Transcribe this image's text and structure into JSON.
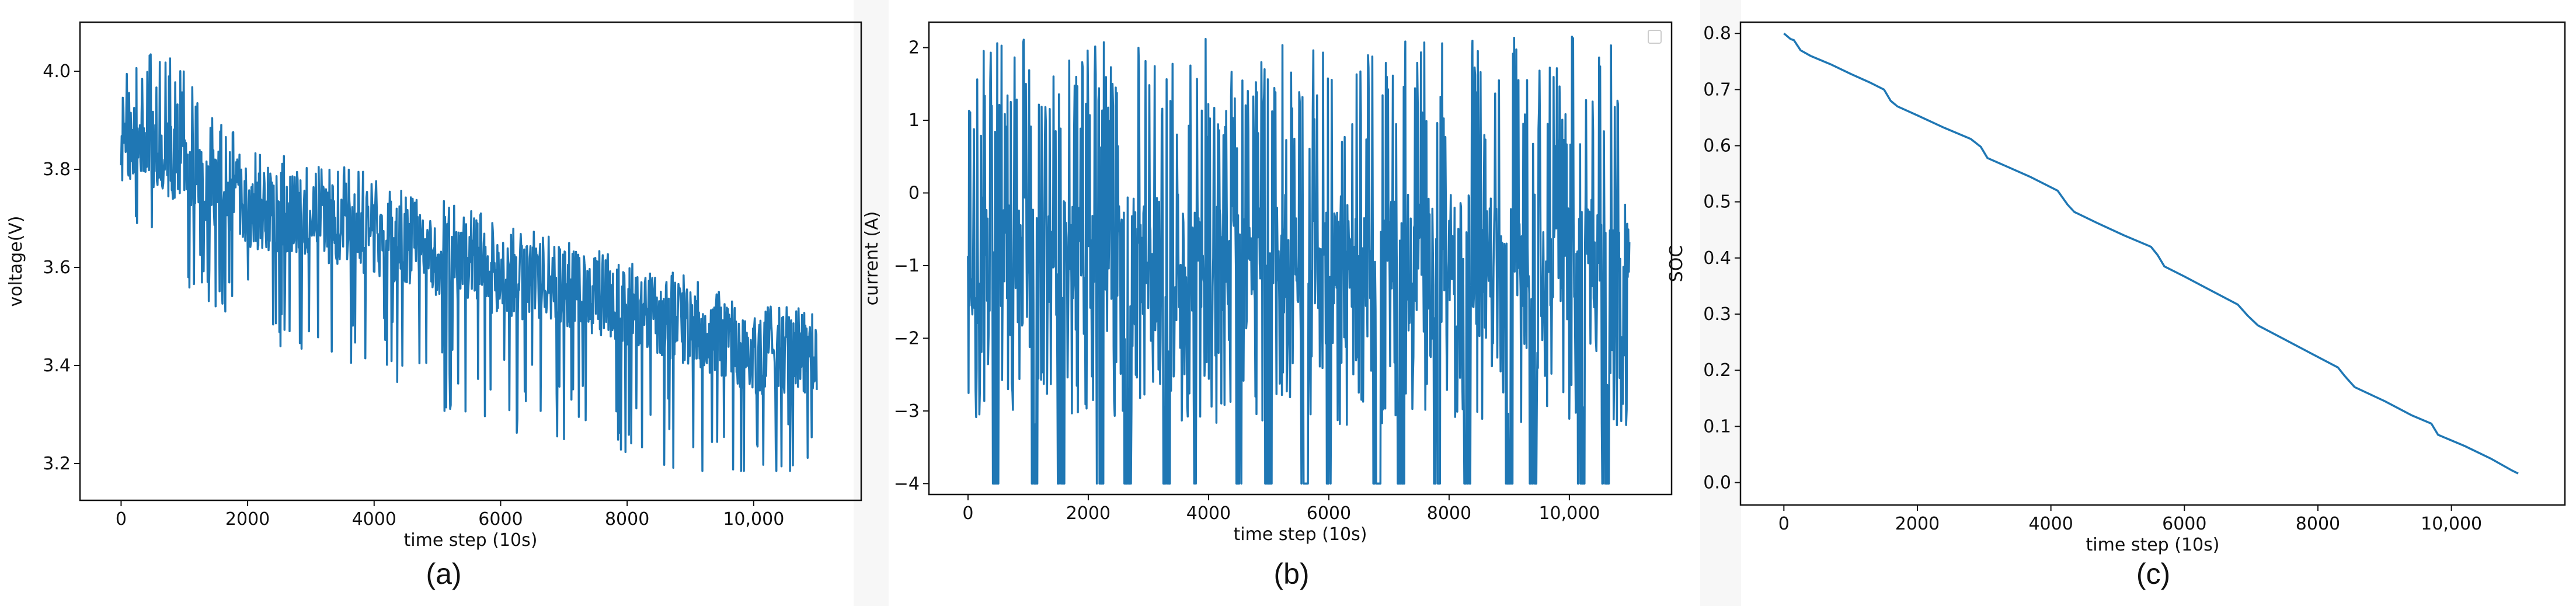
{
  "figure": {
    "panel_labels": [
      "(a)",
      "(b)",
      "(c)"
    ]
  },
  "chart_data": [
    {
      "type": "line",
      "xlabel": "time step (10s)",
      "ylabel": "voltage(V)",
      "xlim": [
        -650,
        11700
      ],
      "ylim": [
        3.125,
        4.1
      ],
      "xticks": [
        0,
        2000,
        4000,
        6000,
        8000,
        10000
      ],
      "xtick_labels": [
        "0",
        "2000",
        "4000",
        "6000",
        "8000",
        "10,000"
      ],
      "yticks": [
        3.2,
        3.4,
        3.6,
        3.8,
        4.0
      ],
      "ytick_labels": [
        "3.2",
        "3.4",
        "3.6",
        "3.8",
        "4.0"
      ],
      "color": "#1f77b4",
      "series": [
        {
          "x": [
            0,
            500,
            1000,
            2000,
            3000,
            4000,
            5000,
            6000,
            7000,
            8000,
            9000,
            10000,
            11000
          ],
          "values": [
            3.85,
            3.84,
            3.8,
            3.72,
            3.7,
            3.66,
            3.62,
            3.58,
            3.56,
            3.52,
            3.48,
            3.42,
            3.42
          ],
          "spread_up": [
            0.15,
            0.22,
            0.2,
            0.12,
            0.12,
            0.13,
            0.12,
            0.12,
            0.1,
            0.1,
            0.1,
            0.1,
            0.1
          ],
          "spread_down": [
            0.15,
            0.25,
            0.25,
            0.24,
            0.32,
            0.31,
            0.32,
            0.32,
            0.32,
            0.3,
            0.3,
            0.3,
            0.25
          ]
        }
      ]
    },
    {
      "type": "line",
      "xlabel": "time step (10s)",
      "ylabel": "current (A)",
      "xlim": [
        -650,
        11700
      ],
      "ylim": [
        -4.15,
        2.35
      ],
      "xticks": [
        0,
        2000,
        4000,
        6000,
        8000,
        10000
      ],
      "xtick_labels": [
        "0",
        "2000",
        "4000",
        "6000",
        "8000",
        "10,000"
      ],
      "yticks": [
        -4,
        -3,
        -2,
        -1,
        0,
        1,
        2
      ],
      "ytick_labels": [
        "−4",
        "−3",
        "−2",
        "−1",
        "0",
        "1",
        "2"
      ],
      "color": "#1f77b4",
      "legend": "top-right",
      "series": [
        {
          "x": [
            0,
            11000
          ],
          "values": [
            -0.8,
            -0.8
          ],
          "range": [
            -4.0,
            2.15
          ],
          "deep_dips_x": [
            450,
            1100,
            1550,
            2200,
            2650,
            3300,
            3750,
            4500,
            5000,
            5600,
            6000,
            6800,
            7200,
            7800,
            8300,
            9000,
            9400,
            10200,
            10600
          ]
        }
      ]
    },
    {
      "type": "line",
      "xlabel": "time step (10s)",
      "ylabel": "SOC",
      "xlim": [
        -650,
        11700
      ],
      "ylim": [
        -0.04,
        0.82
      ],
      "xticks": [
        0,
        2000,
        4000,
        6000,
        8000,
        10000
      ],
      "xtick_labels": [
        "0",
        "2000",
        "4000",
        "6000",
        "8000",
        "10,000"
      ],
      "yticks": [
        0.0,
        0.1,
        0.2,
        0.3,
        0.4,
        0.5,
        0.6,
        0.7,
        0.8
      ],
      "ytick_labels": [
        "0.0",
        "0.1",
        "0.2",
        "0.3",
        "0.4",
        "0.5",
        "0.6",
        "0.7",
        "0.8"
      ],
      "color": "#1f77b4",
      "series": [
        {
          "x": [
            0,
            100,
            150,
            250,
            400,
            700,
            1000,
            1300,
            1500,
            1600,
            1700,
            2000,
            2400,
            2800,
            2950,
            3050,
            3300,
            3700,
            4100,
            4250,
            4350,
            4700,
            5100,
            5500,
            5600,
            5700,
            6000,
            6400,
            6800,
            6950,
            7100,
            7500,
            7900,
            8300,
            8400,
            8550,
            9000,
            9400,
            9700,
            9800,
            10200,
            10600,
            10900,
            11000
          ],
          "values": [
            0.8,
            0.79,
            0.788,
            0.77,
            0.76,
            0.745,
            0.728,
            0.712,
            0.7,
            0.68,
            0.67,
            0.654,
            0.632,
            0.612,
            0.598,
            0.578,
            0.565,
            0.544,
            0.52,
            0.495,
            0.482,
            0.462,
            0.44,
            0.42,
            0.405,
            0.385,
            0.367,
            0.342,
            0.317,
            0.297,
            0.28,
            0.255,
            0.23,
            0.205,
            0.19,
            0.17,
            0.145,
            0.12,
            0.105,
            0.085,
            0.065,
            0.042,
            0.022,
            0.016
          ]
        }
      ]
    }
  ]
}
